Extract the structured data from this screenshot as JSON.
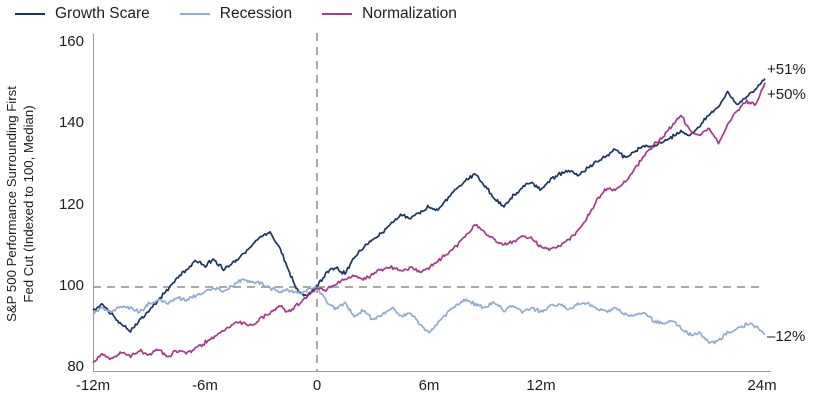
{
  "chart_data": {
    "type": "line",
    "title": "",
    "ylabel_line1": "S&P 500 Performance Surrounding First",
    "ylabel_line2": "Fed Cut (Indexed to 100, Median)",
    "xlabel": "",
    "xlim": [
      -12,
      24.3
    ],
    "ylim": [
      80,
      160
    ],
    "grid": false,
    "legend_position": "top-left",
    "noise_amplitude": 0.55,
    "x_months": [
      -12,
      -11.5,
      -11,
      -10.5,
      -10,
      -9.5,
      -9,
      -8.5,
      -8,
      -7.5,
      -7,
      -6.5,
      -6,
      -5.5,
      -5,
      -4.5,
      -4,
      -3.5,
      -3,
      -2.5,
      -2,
      -1.5,
      -1,
      -0.5,
      0,
      0.5,
      1,
      1.5,
      2,
      2.5,
      3,
      3.5,
      4,
      4.5,
      5,
      5.5,
      6,
      6.5,
      7,
      7.5,
      8,
      8.5,
      9,
      9.5,
      10,
      10.5,
      11,
      11.5,
      12,
      12.5,
      13,
      13.5,
      14,
      14.5,
      15,
      15.5,
      16,
      16.5,
      17,
      17.5,
      18,
      18.5,
      19,
      19.5,
      20,
      20.5,
      21,
      21.5,
      22,
      22.5,
      23,
      23.5,
      24
    ],
    "series": [
      {
        "name": "Growth Scare",
        "color": "#1a3561",
        "end_label": "+51%",
        "values": [
          94,
          95.5,
          93,
          90.5,
          89,
          91.5,
          94,
          96.5,
          99,
          102,
          104,
          106,
          105,
          106.5,
          104,
          105.5,
          107.5,
          110,
          112,
          113,
          109.5,
          103.5,
          98.5,
          97.5,
          100,
          103,
          104.5,
          103,
          107,
          109.5,
          111.5,
          113,
          115.5,
          117.5,
          116.5,
          118,
          119.5,
          118.5,
          121.5,
          124,
          126,
          127.5,
          124.5,
          121.5,
          119.5,
          122,
          124.5,
          125.5,
          123.5,
          126,
          127.5,
          128.5,
          127,
          129,
          130.5,
          132,
          133.5,
          131.5,
          133,
          134.5,
          134,
          135.5,
          136.5,
          138,
          137,
          139.5,
          142,
          144,
          147.5,
          144.5,
          146.5,
          148.5,
          151
        ]
      },
      {
        "name": "Recession",
        "color": "#8fabd1",
        "end_label": "–12%",
        "values": [
          93,
          94.5,
          93.5,
          95,
          94.5,
          93.5,
          95.5,
          96.5,
          95.5,
          97,
          96.5,
          97.5,
          98.5,
          99.5,
          98.5,
          100,
          101.5,
          101,
          100.5,
          99.5,
          98.5,
          99,
          98,
          99,
          99.5,
          96,
          94.5,
          95.5,
          92.5,
          94,
          91.5,
          93,
          94.5,
          92.5,
          93.5,
          90.5,
          88.5,
          91,
          93.5,
          95.5,
          96.5,
          95.5,
          94.5,
          96,
          94,
          95,
          93.5,
          94.5,
          93.5,
          95,
          95.5,
          94,
          95.5,
          95.5,
          94.5,
          93.5,
          94.5,
          93,
          92.5,
          93.5,
          91.5,
          90.5,
          91.5,
          89.5,
          88,
          88.5,
          86,
          86.5,
          88.5,
          89.5,
          90.5,
          90,
          88
        ]
      },
      {
        "name": "Normalization",
        "color": "#a53a8b",
        "end_label": "+50%",
        "values": [
          81,
          83,
          82,
          83.5,
          82.5,
          84,
          83,
          84.5,
          82.5,
          84,
          83.5,
          84.5,
          86,
          87.5,
          89,
          90.5,
          91,
          90,
          92,
          93.5,
          95,
          93.5,
          95.5,
          97.5,
          99.5,
          99,
          100.5,
          101.5,
          102.5,
          101.5,
          103,
          104,
          104.5,
          103.5,
          104.5,
          103.5,
          104.5,
          106,
          108,
          110,
          112.5,
          115,
          113,
          111.5,
          110,
          111,
          112,
          111.5,
          109.5,
          109,
          110,
          111.5,
          113.5,
          117,
          121,
          124,
          123.5,
          125.5,
          128.5,
          132,
          134.5,
          136.5,
          139.5,
          142,
          138,
          137,
          139,
          135,
          139.5,
          143,
          145.5,
          144.5,
          150
        ]
      }
    ],
    "x_ticks": [
      {
        "m": -12,
        "label": "-12m"
      },
      {
        "m": -6,
        "label": "-6m"
      },
      {
        "m": 0,
        "label": "0"
      },
      {
        "m": 6,
        "label": "6m"
      },
      {
        "m": 12,
        "label": "12m"
      },
      {
        "m": 24,
        "label": "24m"
      }
    ],
    "y_ticks": [
      {
        "v": 160,
        "label": "160"
      },
      {
        "v": 140,
        "label": "140"
      },
      {
        "v": 120,
        "label": "120"
      },
      {
        "v": 100,
        "label": "100"
      },
      {
        "v": 80,
        "label": "80"
      }
    ],
    "annotations": [
      {
        "text": "+51%",
        "y": 153
      },
      {
        "text": "+50%",
        "y": 147
      },
      {
        "text": "–12%",
        "y": 87.5
      }
    ],
    "reference_lines": {
      "h_value": 100,
      "v_month": 0
    },
    "colors": {
      "axis": "#999999",
      "dashed": "#a9a9a9",
      "text": "#1d1d1d"
    }
  }
}
